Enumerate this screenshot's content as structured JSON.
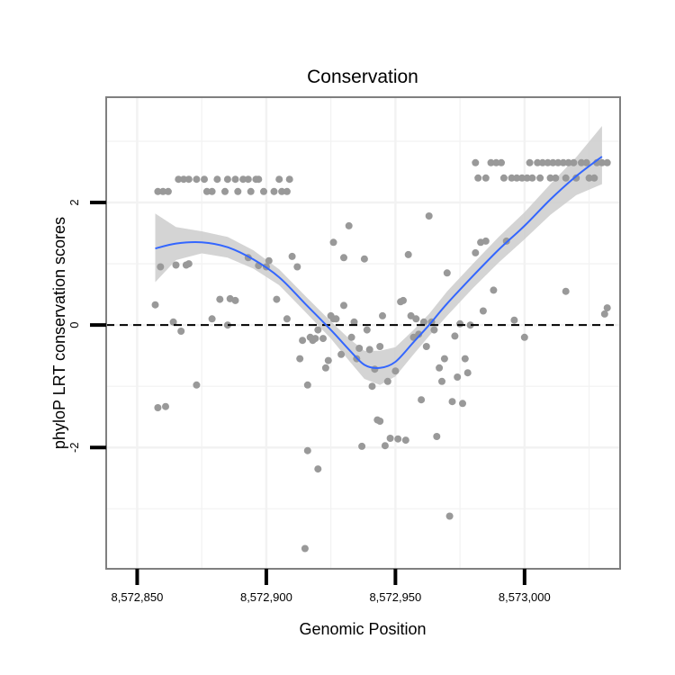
{
  "chart_data": {
    "type": "scatter",
    "title": "Conservation",
    "xlabel": "Genomic Position",
    "ylabel": "phyloP LRT conservation scores",
    "xlim": [
      8572838,
      8573037
    ],
    "ylim": [
      -3.98,
      3.72
    ],
    "x_ticks": [
      {
        "value": 8572850,
        "label": "8,572,850"
      },
      {
        "value": 8572900,
        "label": "8,572,900"
      },
      {
        "value": 8572950,
        "label": "8,572,950"
      },
      {
        "value": 8573000,
        "label": "8,573,000"
      }
    ],
    "y_ticks": [
      {
        "value": -2,
        "label": "-2"
      },
      {
        "value": 0,
        "label": "0"
      },
      {
        "value": 2,
        "label": "2"
      }
    ],
    "grid": true,
    "reference_line": {
      "y": 0,
      "style": "dashed"
    },
    "points": [
      [
        8572858,
        2.18
      ],
      [
        8572860,
        2.18
      ],
      [
        8572862,
        2.18
      ],
      [
        8572866,
        2.38
      ],
      [
        8572868,
        2.38
      ],
      [
        8572870,
        2.38
      ],
      [
        8572873,
        2.38
      ],
      [
        8572876,
        2.38
      ],
      [
        8572877,
        2.18
      ],
      [
        8572879,
        2.18
      ],
      [
        8572881,
        2.38
      ],
      [
        8572884,
        2.18
      ],
      [
        8572885,
        2.38
      ],
      [
        8572888,
        2.38
      ],
      [
        8572889,
        2.18
      ],
      [
        8572891,
        2.38
      ],
      [
        8572893,
        2.38
      ],
      [
        8572894,
        2.18
      ],
      [
        8572896,
        2.38
      ],
      [
        8572897,
        2.38
      ],
      [
        8572899,
        2.18
      ],
      [
        8572903,
        2.18
      ],
      [
        8572905,
        2.38
      ],
      [
        8572906,
        2.18
      ],
      [
        8572908,
        2.18
      ],
      [
        8572909,
        2.38
      ],
      [
        8572981,
        2.65
      ],
      [
        8572982,
        2.4
      ],
      [
        8572985,
        2.4
      ],
      [
        8572987,
        2.65
      ],
      [
        8572989,
        2.65
      ],
      [
        8572991,
        2.65
      ],
      [
        8572992,
        2.4
      ],
      [
        8572995,
        2.4
      ],
      [
        8572997,
        2.4
      ],
      [
        8572999,
        2.4
      ],
      [
        8573001,
        2.4
      ],
      [
        8573002,
        2.65
      ],
      [
        8573003,
        2.4
      ],
      [
        8573005,
        2.65
      ],
      [
        8573006,
        2.4
      ],
      [
        8573007,
        2.65
      ],
      [
        8573009,
        2.65
      ],
      [
        8573010,
        2.4
      ],
      [
        8573011,
        2.65
      ],
      [
        8573012,
        2.4
      ],
      [
        8573013,
        2.65
      ],
      [
        8573015,
        2.65
      ],
      [
        8573016,
        2.4
      ],
      [
        8573017,
        2.65
      ],
      [
        8573019,
        2.65
      ],
      [
        8573020,
        2.4
      ],
      [
        8573022,
        2.65
      ],
      [
        8573024,
        2.65
      ],
      [
        8573025,
        2.4
      ],
      [
        8573027,
        2.4
      ],
      [
        8573028,
        2.65
      ],
      [
        8573030,
        2.65
      ],
      [
        8573032,
        2.65
      ],
      [
        8572857,
        0.33
      ],
      [
        8572859,
        0.95
      ],
      [
        8572858,
        -1.35
      ],
      [
        8572861,
        -1.33
      ],
      [
        8572864,
        0.05
      ],
      [
        8572865,
        0.98
      ],
      [
        8572867,
        -0.1
      ],
      [
        8572869,
        0.98
      ],
      [
        8572870,
        1.0
      ],
      [
        8572873,
        -0.98
      ],
      [
        8572879,
        0.1
      ],
      [
        8572882,
        0.42
      ],
      [
        8572885,
        0.0
      ],
      [
        8572886,
        0.43
      ],
      [
        8572888,
        0.4
      ],
      [
        8572893,
        1.1
      ],
      [
        8572897,
        0.97
      ],
      [
        8572900,
        0.95
      ],
      [
        8572901,
        1.05
      ],
      [
        8572904,
        0.42
      ],
      [
        8572908,
        0.1
      ],
      [
        8572910,
        1.12
      ],
      [
        8572912,
        0.95
      ],
      [
        8572913,
        -0.55
      ],
      [
        8572914,
        -0.25
      ],
      [
        8572915,
        -3.65
      ],
      [
        8572916,
        -0.98
      ],
      [
        8572916,
        -2.05
      ],
      [
        8572917,
        -0.2
      ],
      [
        8572918,
        -0.25
      ],
      [
        8572919,
        -0.22
      ],
      [
        8572920,
        -0.08
      ],
      [
        8572920,
        -2.35
      ],
      [
        8572922,
        -0.22
      ],
      [
        8572923,
        -0.7
      ],
      [
        8572924,
        -0.58
      ],
      [
        8572925,
        0.15
      ],
      [
        8572926,
        0.1
      ],
      [
        8572926,
        1.35
      ],
      [
        8572927,
        0.1
      ],
      [
        8572929,
        -0.48
      ],
      [
        8572930,
        1.1
      ],
      [
        8572930,
        0.32
      ],
      [
        8572932,
        1.62
      ],
      [
        8572933,
        -0.2
      ],
      [
        8572934,
        0.05
      ],
      [
        8572935,
        -0.55
      ],
      [
        8572936,
        -0.38
      ],
      [
        8572937,
        -1.98
      ],
      [
        8572938,
        1.08
      ],
      [
        8572939,
        -0.08
      ],
      [
        8572940,
        -0.4
      ],
      [
        8572941,
        -1.0
      ],
      [
        8572942,
        -0.72
      ],
      [
        8572943,
        -1.55
      ],
      [
        8572944,
        -0.35
      ],
      [
        8572944,
        -1.57
      ],
      [
        8572945,
        0.15
      ],
      [
        8572946,
        -1.97
      ],
      [
        8572947,
        -0.92
      ],
      [
        8572948,
        -1.85
      ],
      [
        8572950,
        -0.75
      ],
      [
        8572951,
        -1.86
      ],
      [
        8572952,
        0.38
      ],
      [
        8572953,
        0.4
      ],
      [
        8572954,
        -1.88
      ],
      [
        8572955,
        1.15
      ],
      [
        8572956,
        0.15
      ],
      [
        8572957,
        -0.2
      ],
      [
        8572958,
        0.1
      ],
      [
        8572959,
        -0.15
      ],
      [
        8572960,
        -1.22
      ],
      [
        8572961,
        0.05
      ],
      [
        8572962,
        -0.35
      ],
      [
        8572963,
        1.78
      ],
      [
        8572964,
        0.05
      ],
      [
        8572965,
        -0.08
      ],
      [
        8572966,
        -1.82
      ],
      [
        8572967,
        -0.7
      ],
      [
        8572968,
        -0.92
      ],
      [
        8572969,
        -0.55
      ],
      [
        8572970,
        0.85
      ],
      [
        8572971,
        -3.12
      ],
      [
        8572972,
        -1.25
      ],
      [
        8572973,
        -0.18
      ],
      [
        8572974,
        -0.85
      ],
      [
        8572975,
        0.02
      ],
      [
        8572976,
        -1.28
      ],
      [
        8572977,
        -0.55
      ],
      [
        8572978,
        -0.78
      ],
      [
        8572979,
        0.0
      ],
      [
        8572981,
        1.18
      ],
      [
        8572983,
        1.35
      ],
      [
        8572984,
        0.23
      ],
      [
        8572985,
        1.37
      ],
      [
        8572988,
        0.57
      ],
      [
        8572993,
        1.37
      ],
      [
        8572996,
        0.08
      ],
      [
        8573000,
        -0.2
      ],
      [
        8573016,
        0.55
      ],
      [
        8573031,
        0.18
      ],
      [
        8573032,
        0.28
      ]
    ],
    "smooth": {
      "x": [
        8572857,
        8572865,
        8572875,
        8572885,
        8572895,
        8572905,
        8572915,
        8572925,
        8572932,
        8572938,
        8572944,
        8572950,
        8572957,
        8572963,
        8572970,
        8572980,
        8572990,
        8573000,
        8573010,
        8573020,
        8573030
      ],
      "y": [
        1.25,
        1.33,
        1.35,
        1.27,
        1.07,
        0.78,
        0.35,
        -0.08,
        -0.4,
        -0.65,
        -0.7,
        -0.6,
        -0.28,
        0.0,
        0.35,
        0.8,
        1.23,
        1.62,
        2.05,
        2.43,
        2.75
      ],
      "lower": [
        0.7,
        1.06,
        1.17,
        1.1,
        0.92,
        0.65,
        0.22,
        -0.22,
        -0.58,
        -0.88,
        -0.98,
        -0.84,
        -0.48,
        -0.18,
        0.15,
        0.6,
        1.02,
        1.4,
        1.8,
        2.12,
        2.3
      ],
      "upper": [
        1.82,
        1.6,
        1.53,
        1.44,
        1.22,
        0.91,
        0.48,
        0.06,
        -0.22,
        -0.42,
        -0.42,
        -0.36,
        -0.08,
        0.18,
        0.55,
        1.0,
        1.44,
        1.84,
        2.3,
        2.74,
        3.25
      ]
    },
    "colors": {
      "points": "#999999",
      "smooth_line": "#3366ff",
      "ribbon": "#cccccc",
      "panel_border": "#7f7f7f",
      "grid": "#f2f2f2"
    }
  }
}
